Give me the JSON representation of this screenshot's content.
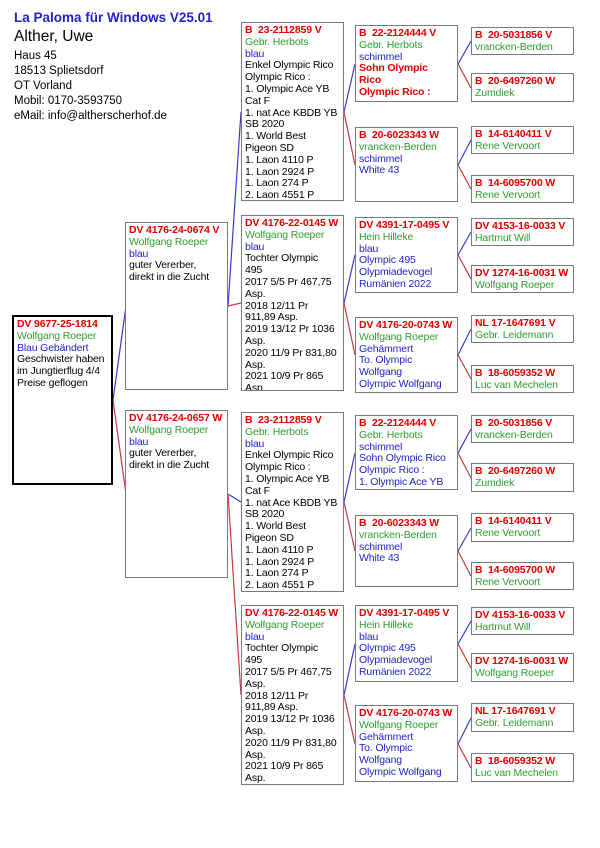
{
  "header": {
    "app_title": "La Paloma für Windows V25.01",
    "owner_name": "Alther, Uwe",
    "address_lines": [
      "Haus 45",
      "18513 Splietsdorf",
      "OT Vorland",
      "Mobil: 0170-3593750",
      "eMail: info@altherscherhof.de"
    ]
  },
  "colors": {
    "ring_red": "#e00000",
    "breeder_green": "#2e9e2e",
    "note_blue": "#2222cc",
    "text_black": "#000000",
    "sire_line_blue": "#3a3ac8",
    "dam_line_red": "#c83a3a",
    "box_border_gray": "#7a7a7a"
  },
  "boxes": {
    "subject": {
      "lines": [
        {
          "t": "DV 9677-25-1814",
          "c": "red",
          "b": true
        },
        {
          "t": "Wolfgang Roeper",
          "c": "green"
        },
        {
          "t": "Blau Gebändert",
          "c": "blue"
        },
        {
          "t": "Geschwister haben",
          "c": "black"
        },
        {
          "t": "im Jungtierflug 4/4",
          "c": "black"
        },
        {
          "t": "Preise geflogen",
          "c": "black"
        }
      ]
    },
    "g2_sire": {
      "lines": [
        {
          "t": "DV 4176-24-0674 V",
          "c": "red",
          "b": true
        },
        {
          "t": "Wolfgang Roeper",
          "c": "green"
        },
        {
          "t": "blau",
          "c": "blue"
        },
        {
          "t": "guter Vererber,",
          "c": "black"
        },
        {
          "t": "direkt in die Zucht",
          "c": "black"
        }
      ]
    },
    "g2_dam": {
      "lines": [
        {
          "t": "DV 4176-24-0657 W",
          "c": "red",
          "b": true
        },
        {
          "t": "Wolfgang Roeper",
          "c": "green"
        },
        {
          "t": "blau",
          "c": "blue"
        },
        {
          "t": "guter Vererber,",
          "c": "black"
        },
        {
          "t": "direkt in die Zucht",
          "c": "black"
        }
      ]
    },
    "g3_herbots": {
      "lines": [
        {
          "t": "B  23-2112859 V",
          "c": "red",
          "b": true
        },
        {
          "t": "Gebr. Herbots",
          "c": "green"
        },
        {
          "t": "blau",
          "c": "blue"
        },
        {
          "t": "Enkel Olympic Rico",
          "c": "black"
        },
        {
          "t": "Olympic Rico :",
          "c": "black"
        },
        {
          "t": "1. Olympic Ace YB",
          "c": "black"
        },
        {
          "t": "Cat F",
          "c": "black"
        },
        {
          "t": "1. nat Ace KBDB YB",
          "c": "black"
        },
        {
          "t": "SB 2020",
          "c": "black"
        },
        {
          "t": "1. World Best",
          "c": "black"
        },
        {
          "t": "Pigeon SD",
          "c": "black"
        },
        {
          "t": "1. Laon 4110 P",
          "c": "black"
        },
        {
          "t": "1. Laon 2924 P",
          "c": "black"
        },
        {
          "t": "1. Laon 274 P",
          "c": "black"
        },
        {
          "t": "2. Laon 4551 P",
          "c": "black"
        }
      ]
    },
    "g3_roeper": {
      "lines": [
        {
          "t": "DV 4176-22-0145 W",
          "c": "red",
          "b": true
        },
        {
          "t": "Wolfgang Roeper",
          "c": "green"
        },
        {
          "t": "blau",
          "c": "blue"
        },
        {
          "t": "Tochter Olympic",
          "c": "black"
        },
        {
          "t": "495",
          "c": "black"
        },
        {
          "t": "2017 5/5 Pr 467,75",
          "c": "black"
        },
        {
          "t": "Asp.",
          "c": "black"
        },
        {
          "t": "2018 12/11 Pr",
          "c": "black"
        },
        {
          "t": "911,89 Asp.",
          "c": "black"
        },
        {
          "t": "2019 13/12 Pr 1036",
          "c": "black"
        },
        {
          "t": "Asp.",
          "c": "black"
        },
        {
          "t": "2020 11/9 Pr 831,80",
          "c": "black"
        },
        {
          "t": "Asp.",
          "c": "black"
        },
        {
          "t": "2021 10/9 Pr 865",
          "c": "black"
        },
        {
          "t": "Asp.",
          "c": "black"
        }
      ]
    },
    "g4_herbots_top": {
      "lines": [
        {
          "t": "B  22-2124444 V",
          "c": "red",
          "b": true
        },
        {
          "t": "Gebr. Herbots",
          "c": "green"
        },
        {
          "t": "schimmel",
          "c": "blue"
        },
        {
          "t": "Sohn Olympic",
          "c": "red",
          "b": true
        },
        {
          "t": "Rico",
          "c": "red",
          "b": true
        },
        {
          "t": "Olympic Rico :",
          "c": "red",
          "b": true
        }
      ]
    },
    "g4_herbots_bottom": {
      "lines": [
        {
          "t": "B  22-2124444 V",
          "c": "red",
          "b": true
        },
        {
          "t": "Gebr. Herbots",
          "c": "green"
        },
        {
          "t": "schimmel",
          "c": "blue"
        },
        {
          "t": "Sohn Olympic Rico",
          "c": "blue"
        },
        {
          "t": "Olympic Rico :",
          "c": "blue"
        },
        {
          "t": "1. Olympic Ace YB",
          "c": "blue"
        }
      ]
    },
    "g4_vrancken": {
      "lines": [
        {
          "t": "B  20-6023343 W",
          "c": "red",
          "b": true
        },
        {
          "t": "vrancken-Berden",
          "c": "green"
        },
        {
          "t": "schimmel",
          "c": "blue"
        },
        {
          "t": "White 43",
          "c": "blue"
        }
      ]
    },
    "g4_hilleke": {
      "lines": [
        {
          "t": "DV 4391-17-0495 V",
          "c": "red",
          "b": true
        },
        {
          "t": "Hein Hilleke",
          "c": "green"
        },
        {
          "t": "blau",
          "c": "blue"
        },
        {
          "t": "Olympic 495",
          "c": "blue"
        },
        {
          "t": "Olypmiadevogel",
          "c": "blue"
        },
        {
          "t": "Rumänien 2022",
          "c": "blue"
        }
      ]
    },
    "g4_roeper": {
      "lines": [
        {
          "t": "DV 4176-20-0743 W",
          "c": "red",
          "b": true
        },
        {
          "t": "Wolfgang Roeper",
          "c": "green"
        },
        {
          "t": "Gehämmert",
          "c": "blue"
        },
        {
          "t": "To. Olympic",
          "c": "blue"
        },
        {
          "t": "Wolfgang",
          "c": "blue"
        },
        {
          "t": "Olympic Wolfgang",
          "c": "blue"
        }
      ]
    },
    "g5_vrancken": {
      "lines": [
        {
          "t": "B  20-5031856 V",
          "c": "red",
          "b": true
        },
        {
          "t": "vrancken-Berden",
          "c": "green"
        }
      ]
    },
    "g5_zumdiek": {
      "lines": [
        {
          "t": "B  20-6497260 W",
          "c": "red",
          "b": true
        },
        {
          "t": "Zumdiek",
          "c": "green"
        }
      ]
    },
    "g5_vervoort_v": {
      "lines": [
        {
          "t": "B  14-6140411 V",
          "c": "red",
          "b": true
        },
        {
          "t": "Rene Vervoort",
          "c": "green"
        }
      ]
    },
    "g5_vervoort_w": {
      "lines": [
        {
          "t": "B  14-6095700 W",
          "c": "red",
          "b": true
        },
        {
          "t": "Rene Vervoort",
          "c": "green"
        }
      ]
    },
    "g5_will": {
      "lines": [
        {
          "t": "DV 4153-16-0033 V",
          "c": "red",
          "b": true
        },
        {
          "t": "Hartmut Will",
          "c": "green"
        }
      ]
    },
    "g5_roeper": {
      "lines": [
        {
          "t": "DV 1274-16-0031 W",
          "c": "red",
          "b": true
        },
        {
          "t": "Wolfgang Roeper",
          "c": "green"
        }
      ]
    },
    "g5_leidemann": {
      "lines": [
        {
          "t": "NL 17-1647691 V",
          "c": "red",
          "b": true
        },
        {
          "t": "Gebr. Leidemann",
          "c": "green"
        }
      ]
    },
    "g5_mechelen": {
      "lines": [
        {
          "t": "B  18-6059352 W",
          "c": "red",
          "b": true
        },
        {
          "t": "Luc van Mechelen",
          "c": "green"
        }
      ]
    }
  }
}
